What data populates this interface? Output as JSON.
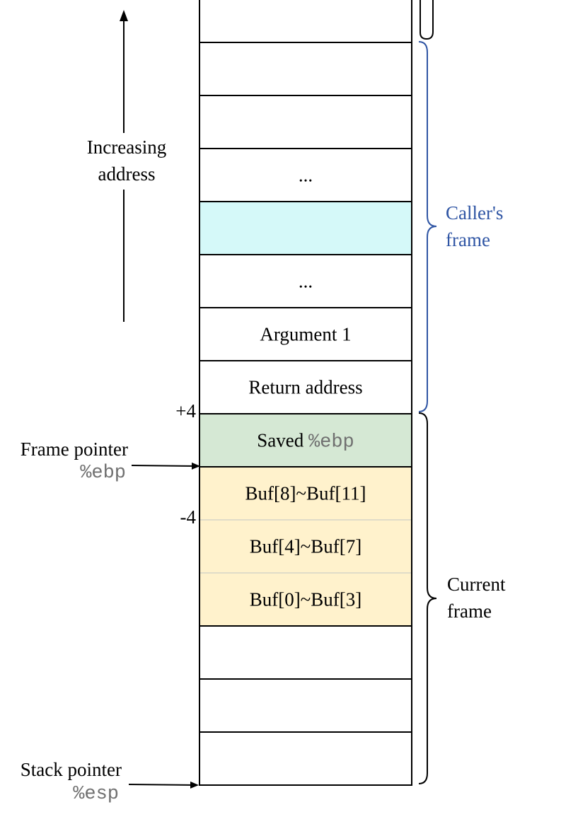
{
  "stack_cells": [
    {
      "text": "",
      "fill": "#ffffff"
    },
    {
      "text": "",
      "fill": "#ffffff"
    },
    {
      "text": "",
      "fill": "#ffffff"
    },
    {
      "text": "...",
      "fill": "#ffffff"
    },
    {
      "text": "",
      "fill": "#d5f9f9"
    },
    {
      "text": "...",
      "fill": "#ffffff"
    },
    {
      "text": "Argument 1",
      "fill": "#ffffff"
    },
    {
      "text": "Return address",
      "fill": "#ffffff"
    },
    {
      "text": "Saved ",
      "code": "%ebp",
      "fill": "#d5e8d4"
    },
    {
      "text": "Buf[8]~Buf[11]",
      "fill": "#fff2cc"
    },
    {
      "text": "Buf[4]~Buf[7]",
      "fill": "#fff2cc"
    },
    {
      "text": "Buf[0]~Buf[3]",
      "fill": "#fff2cc"
    },
    {
      "text": "",
      "fill": "#ffffff"
    },
    {
      "text": "",
      "fill": "#ffffff"
    },
    {
      "text": "",
      "fill": "#ffffff"
    }
  ],
  "address_arrow": {
    "line1": "Increasing",
    "line2": "address"
  },
  "offsets": {
    "plus": "+4",
    "minus": "-4"
  },
  "pointers": {
    "frame": {
      "label": "Frame pointer",
      "register": "%ebp"
    },
    "stack": {
      "label": "Stack pointer",
      "register": "%esp"
    }
  },
  "frames": {
    "caller": {
      "line1": "Caller's",
      "line2": "frame",
      "color": "#2f55a4"
    },
    "current": {
      "line1": "Current",
      "line2": "frame",
      "color": "#000000"
    }
  }
}
